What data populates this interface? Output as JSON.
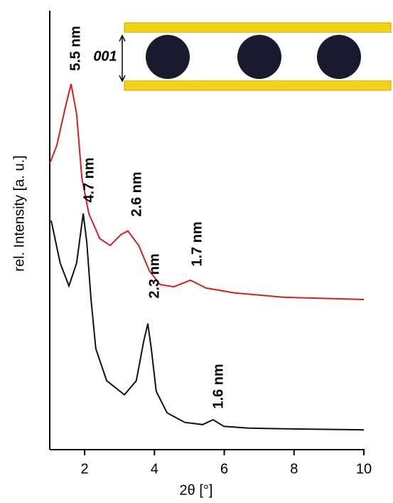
{
  "chart_data": {
    "type": "line",
    "x_label": "2θ [°]",
    "y_label": "rel. Intensity [a. u.]",
    "xlim": [
      1,
      10
    ],
    "xticks": [
      2,
      4,
      6,
      8,
      10
    ],
    "ylim": [
      0,
      100
    ],
    "series": [
      {
        "name": null,
        "color": "#d62020",
        "x": [
          1.0,
          1.2,
          1.45,
          1.61,
          1.77,
          1.92,
          2.12,
          2.43,
          2.73,
          3.04,
          3.24,
          3.55,
          3.85,
          4.16,
          4.56,
          5.03,
          5.48,
          6.3,
          7.72,
          10.0
        ],
        "values": [
          65.2,
          69.2,
          78.1,
          83.3,
          76.5,
          61.9,
          53.8,
          48.1,
          46.5,
          49.0,
          49.8,
          46.5,
          40.8,
          37.6,
          37.1,
          38.6,
          36.8,
          35.7,
          34.7,
          34.2
        ]
      },
      {
        "name": null,
        "color": "#111111",
        "x": [
          1.04,
          1.3,
          1.55,
          1.77,
          1.96,
          2.06,
          2.18,
          2.32,
          2.63,
          3.14,
          3.48,
          3.69,
          3.81,
          3.91,
          4.05,
          4.36,
          4.87,
          5.38,
          5.68,
          5.99,
          6.7,
          8.13,
          10.0
        ],
        "values": [
          52.2,
          42.5,
          37.3,
          42.5,
          53.8,
          47.3,
          34.4,
          23.0,
          15.7,
          12.5,
          15.7,
          24.6,
          28.7,
          23.0,
          13.3,
          8.4,
          6.2,
          5.7,
          6.8,
          5.3,
          4.9,
          4.7,
          4.5
        ]
      }
    ],
    "annotations": [
      "5.5 nm",
      "4.7 nm",
      "2.6 nm",
      "1.7 nm",
      "2.3 nm",
      "1.6 nm",
      "001"
    ]
  }
}
